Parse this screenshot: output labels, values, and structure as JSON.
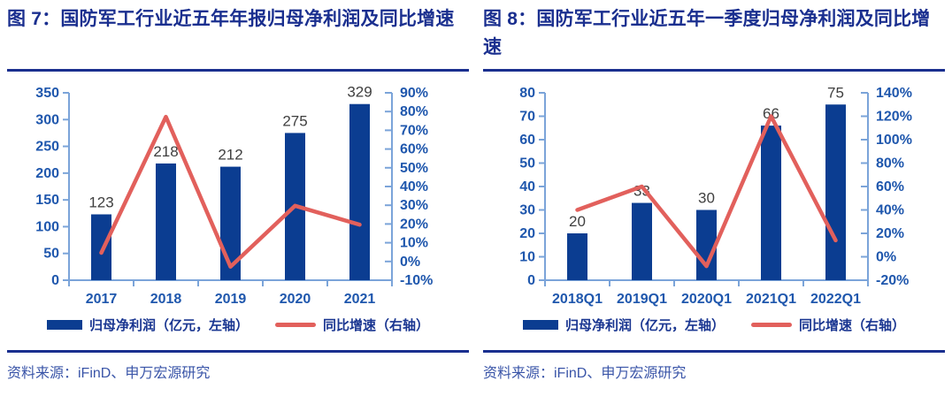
{
  "colors": {
    "bar": "#0B3D91",
    "line": "#E2605C",
    "axis": "#7BA4D9",
    "tick_label": "#1F57AD",
    "title": "#1A2F8F",
    "divider": "#1A2F8F",
    "data_label": "#3F3F3F",
    "legend_text": "#1A3691",
    "source_text": "#3A55A8"
  },
  "panels": [
    {
      "title": "图 7：国防军工行业近五年年报归母净利润及同比增速",
      "legend": [
        {
          "label": "归母净利润（亿元，左轴）",
          "marker": "bar-swatch"
        },
        {
          "label": "同比增速（右轴）",
          "marker": "line-swatch"
        }
      ],
      "source": "资料来源：iFinD、申万宏源研究",
      "chart_data": {
        "type": "combo",
        "title": "国防军工行业近五年年报归母净利润及同比增速",
        "categories": [
          "2017",
          "2018",
          "2019",
          "2020",
          "2021"
        ],
        "series": [
          {
            "name": "归母净利润（亿元，左轴）",
            "type": "bar",
            "axis": "left",
            "unit": "亿元",
            "values": [
              123,
              218,
              212,
              275,
              329
            ],
            "data_labels": [
              "123",
              "218",
              "212",
              "275",
              "329"
            ]
          },
          {
            "name": "同比增速（右轴）",
            "type": "line",
            "axis": "right",
            "unit": "%",
            "values": [
              4.6,
              77.2,
              -2.8,
              29.7,
              19.6
            ]
          }
        ],
        "left_axis": {
          "min": 0,
          "max": 350,
          "step": 50
        },
        "right_axis": {
          "min": -10,
          "max": 90,
          "step": 10,
          "suffix": "%"
        },
        "grid": false,
        "legend_position": "bottom"
      }
    },
    {
      "title": "图 8：国防军工行业近五年一季度归母净利润及同比增速",
      "legend": [
        {
          "label": "归母净利润（亿元，左轴）",
          "marker": "bar-swatch"
        },
        {
          "label": "同比增速（右轴）",
          "marker": "line-swatch"
        }
      ],
      "source": "资料来源：iFinD、申万宏源研究",
      "chart_data": {
        "type": "combo",
        "title": "国防军工行业近五年一季度归母净利润及同比增速",
        "categories": [
          "2018Q1",
          "2019Q1",
          "2020Q1",
          "2021Q1",
          "2022Q1"
        ],
        "series": [
          {
            "name": "归母净利润（亿元，左轴）",
            "type": "bar",
            "axis": "left",
            "unit": "亿元",
            "values": [
              20,
              33,
              30,
              66,
              75
            ],
            "data_labels": [
              "20",
              "33",
              "30",
              "66",
              "75"
            ]
          },
          {
            "name": "同比增速（右轴）",
            "type": "line",
            "axis": "right",
            "unit": "%",
            "values": [
              40,
              60,
              -8,
              120,
              14
            ]
          }
        ],
        "left_axis": {
          "min": 0,
          "max": 80,
          "step": 10
        },
        "right_axis": {
          "min": -20,
          "max": 140,
          "step": 20,
          "suffix": "%"
        },
        "grid": false,
        "legend_position": "bottom"
      }
    }
  ]
}
